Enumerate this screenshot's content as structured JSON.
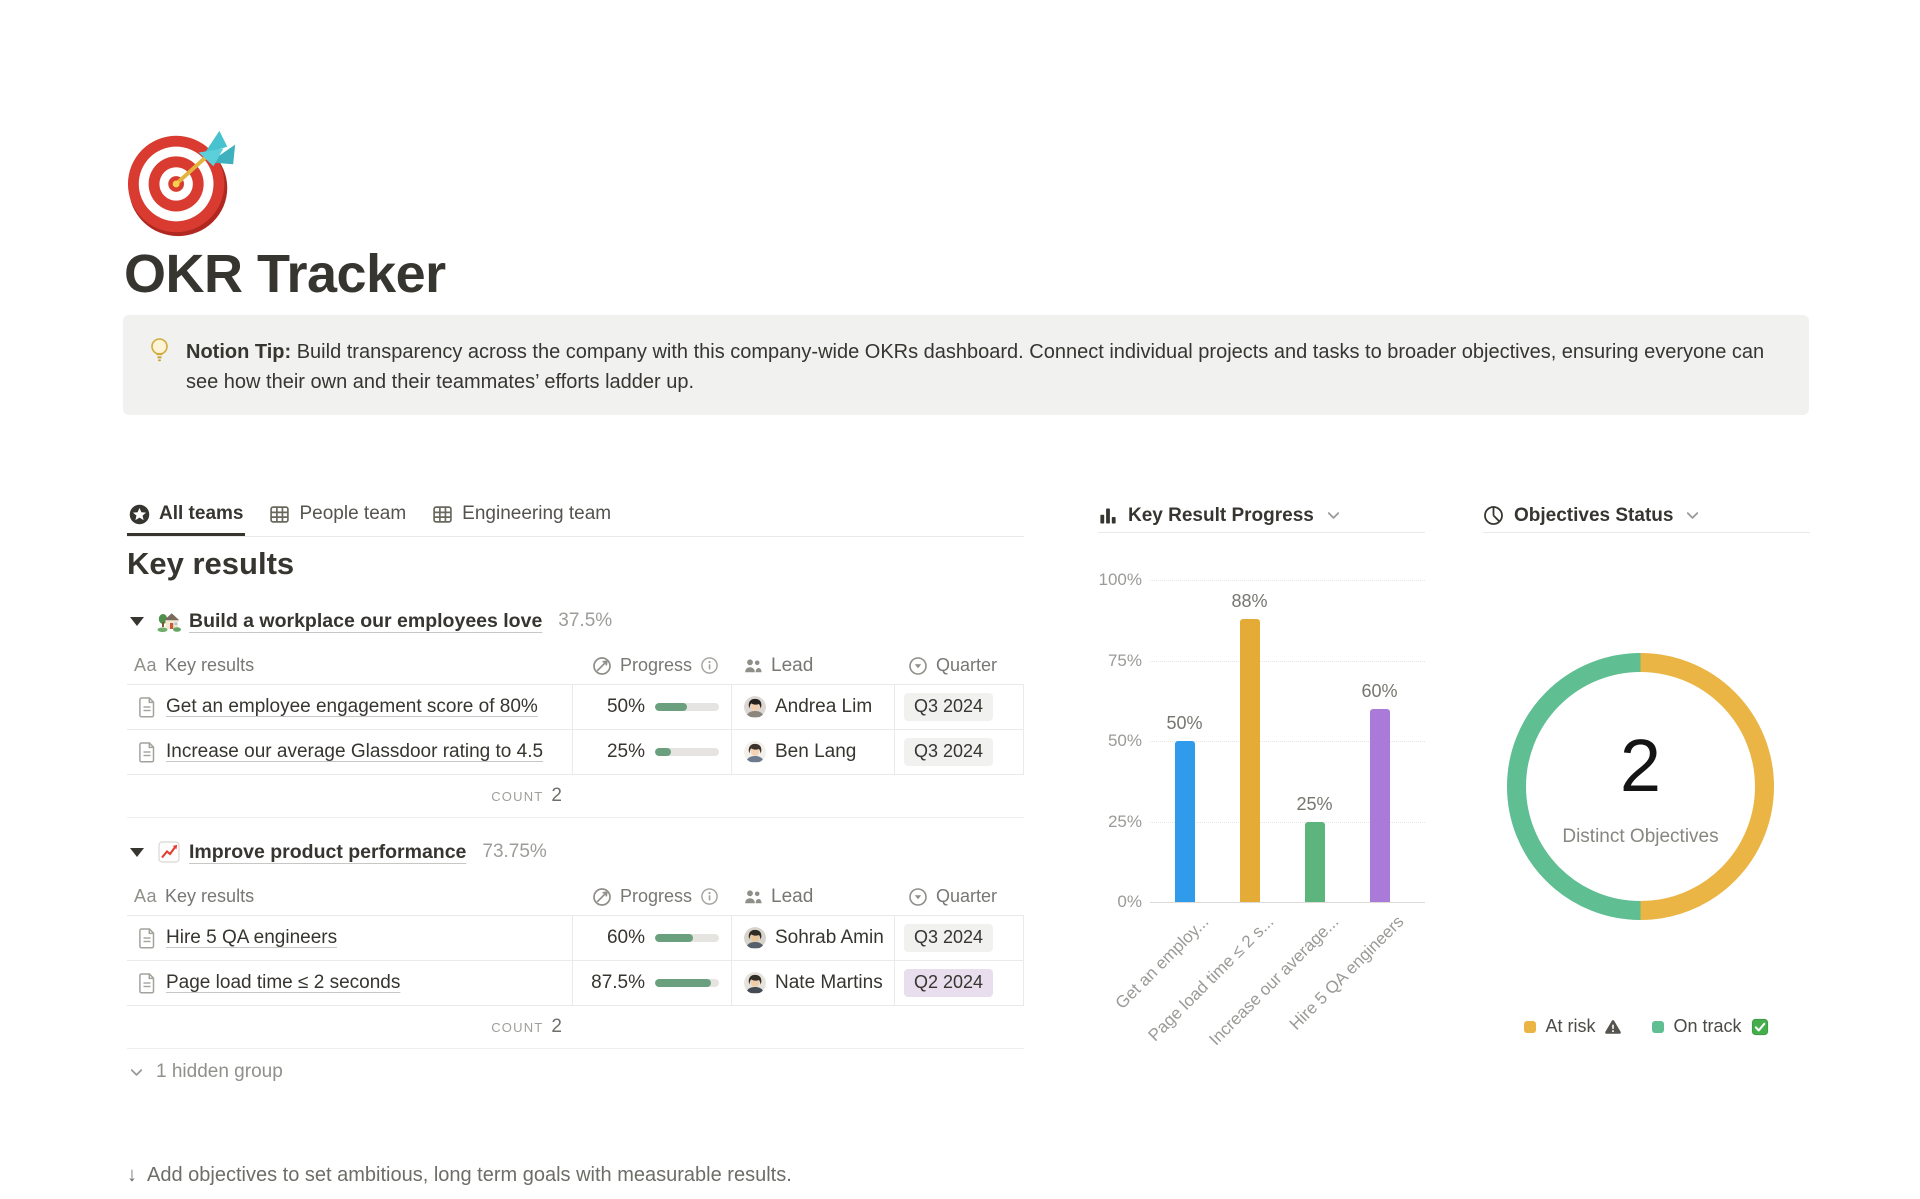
{
  "page": {
    "title": "OKR Tracker",
    "icon": "dart-target-emoji"
  },
  "callout": {
    "icon": "light-bulb-emoji",
    "label_bold": "Notion Tip:",
    "text": "Build transparency across the company with this company-wide OKRs dashboard. Connect individual projects and tasks to broader objectives, ensuring everyone can see how their own and their teammates’ efforts ladder up."
  },
  "tabs": [
    {
      "label": "All teams",
      "icon": "star-view",
      "active": true
    },
    {
      "label": "People team",
      "icon": "table-view",
      "active": false
    },
    {
      "label": "Engineering team",
      "icon": "table-view",
      "active": false
    }
  ],
  "key_results": {
    "heading": "Key results",
    "columns": [
      {
        "label": "Key results",
        "icon": "text-Aa"
      },
      {
        "label": "Progress",
        "icon": "progress-circle",
        "info": true
      },
      {
        "label": "Lead",
        "icon": "people"
      },
      {
        "label": "Quarter",
        "icon": "select-circle"
      }
    ],
    "row_icon": "document",
    "count_label": "COUNT",
    "badge_colors": {
      "gray": "#f1f1ef",
      "purple": "#e8deee"
    },
    "progress_bar_color": "#6ba07f",
    "groups": [
      {
        "emoji": "house-with-garden-emoji",
        "title": "Build a workplace our employees love",
        "percent": "37.5%",
        "count": "2",
        "rows": [
          {
            "name": "Get an employee engagement score of 80%",
            "progress_label": "50%",
            "progress_value": 50,
            "lead": "Andrea Lim",
            "quarter": "Q3 2024",
            "quarter_color": "gray"
          },
          {
            "name": "Increase our average Glassdoor rating to 4.5",
            "progress_label": "25%",
            "progress_value": 25,
            "lead": "Ben Lang",
            "quarter": "Q3 2024",
            "quarter_color": "gray"
          }
        ]
      },
      {
        "emoji": "chart-increasing-emoji",
        "title": "Improve product performance",
        "percent": "73.75%",
        "count": "2",
        "rows": [
          {
            "name": "Hire 5 QA engineers",
            "progress_label": "60%",
            "progress_value": 60,
            "lead": "Sohrab Amin",
            "quarter": "Q3 2024",
            "quarter_color": "gray"
          },
          {
            "name": "Page load time ≤ 2 seconds",
            "progress_label": "87.5%",
            "progress_value": 87.5,
            "lead": "Nate Martins",
            "quarter": "Q2 2024",
            "quarter_color": "purple"
          }
        ]
      }
    ],
    "hidden_group": "1 hidden group",
    "footer_arrow": "↓",
    "footer_hint": "Add objectives to set ambitious, long term goals with measurable results."
  },
  "chart_data": [
    {
      "type": "bar",
      "title": "Key Result Progress",
      "header_icon": "bar-chart",
      "categories": [
        "Get an employ...",
        "Page load time ≤ 2 s...",
        "Increase our average...",
        "Hire 5 QA engineers"
      ],
      "values": [
        50,
        88,
        25,
        60
      ],
      "value_labels": [
        "50%",
        "88%",
        "25%",
        "60%"
      ],
      "bar_colors": [
        "#2F9BEA",
        "#E4AC37",
        "#5CB57D",
        "#A97AD8"
      ],
      "y_ticks": [
        "0%",
        "25%",
        "50%",
        "75%",
        "100%"
      ],
      "ylim": [
        0,
        100
      ],
      "grid": "dotted-horizontal",
      "x_tick_rotation": -45
    },
    {
      "type": "donut",
      "title": "Objectives Status",
      "header_icon": "pie-chart",
      "center_value": "2",
      "center_label": "Distinct Objectives",
      "slices": [
        {
          "label": "At risk",
          "value": 50,
          "color": "#EAB544",
          "icon": "warning-emoji"
        },
        {
          "label": "On track",
          "value": 50,
          "color": "#5FBE92",
          "icon": "check-mark-emoji"
        }
      ],
      "legend_position": "bottom"
    }
  ]
}
